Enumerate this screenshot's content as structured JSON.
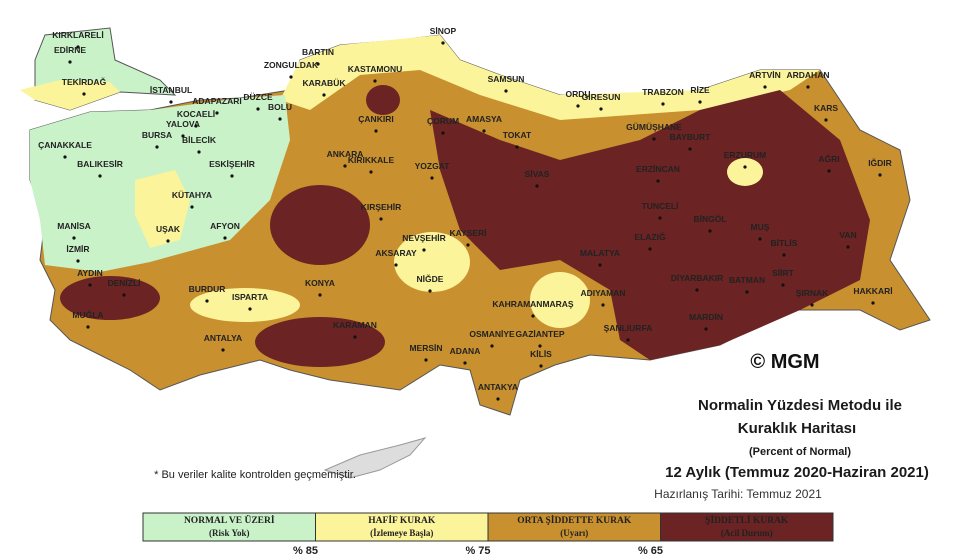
{
  "map": {
    "cities": [
      "KIRKLARELİ",
      "EDİRNE",
      "TEKİRDAĞ",
      "İSTANBUL",
      "ÇANAKKALE",
      "BALIKESİR",
      "BURSA",
      "YALOVA",
      "KOCAELİ",
      "ADAPAZARI",
      "DÜZCE",
      "BOLU",
      "BİLECİK",
      "ESKİŞEHİR",
      "KÜTAHYA",
      "MANİSA",
      "İZMİR",
      "UŞAK",
      "AFYON",
      "AYDIN",
      "DENİZLİ",
      "MUĞLA",
      "BURDUR",
      "ISPARTA",
      "ANTALYA",
      "KONYA",
      "KARAMAN",
      "MERSİN",
      "ADANA",
      "OSMANİYE",
      "GAZİANTEP",
      "KİLİS",
      "ANTAKYA",
      "KAHRAMANMARAŞ",
      "ADIYAMAN",
      "ŞANLIURFA",
      "MALATYA",
      "ELAZIĞ",
      "TUNCELİ",
      "BİNGÖL",
      "MUŞ",
      "BİTLİS",
      "VAN",
      "SİİRT",
      "BATMAN",
      "DİYARBAKIR",
      "MARDİN",
      "ŞIRNAK",
      "HAKKARİ",
      "ERZURUM",
      "ERZİNCAN",
      "AĞRI",
      "IĞDIR",
      "KARS",
      "ARTVİN",
      "ARDAHAN",
      "RİZE",
      "TRABZON",
      "GİRESUN",
      "ORDU",
      "GÜMÜŞHANE",
      "BAYBURT",
      "SAMSUN",
      "SİNOP",
      "AMASYA",
      "TOKAT",
      "SİVAS",
      "ÇORUM",
      "YOZGAT",
      "KIRIKKALE",
      "ANKARA",
      "ÇANKIRI",
      "KASTAMONU",
      "KARABÜK",
      "ZONGULDAK",
      "BARTIN",
      "KIRŞEHİR",
      "NEVŞEHİR",
      "KAYSERİ",
      "AKSARAY",
      "NİĞDE"
    ],
    "watermark": "© MGM"
  },
  "title": {
    "line1": "Normalin Yüzdesi Metodu ile",
    "line2": "Kuraklık Haritası",
    "line3": "(Percent of Normal)",
    "line4": "12 Aylık (Temmuz 2020-Haziran 2021)",
    "date": "Hazırlanış Tarihi: Temmuz 2021"
  },
  "note": "* Bu veriler kalite kontrolden geçmemiştir.",
  "legend": {
    "items": [
      {
        "label": "NORMAL VE ÜZERİ",
        "sublabel": "(Risk Yok)"
      },
      {
        "label": "HAFİF KURAK",
        "sublabel": "(İzlemeye Başla)"
      },
      {
        "label": "ORTA ŞİDDETTE KURAK",
        "sublabel": "(Uyarı)"
      },
      {
        "label": "ŞİDDETLİ KURAK",
        "sublabel": "(Acil Durum)"
      }
    ],
    "thresholds": [
      "% 85",
      "% 75",
      "% 65"
    ]
  }
}
